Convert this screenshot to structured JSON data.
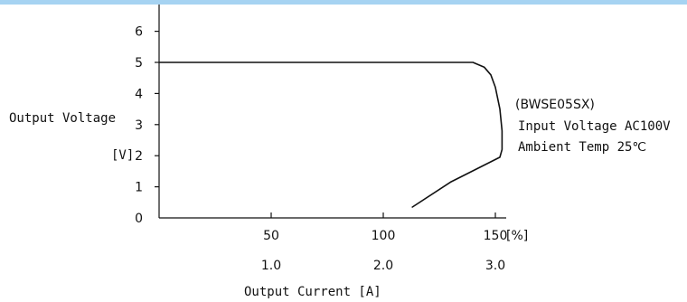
{
  "chart_data": {
    "type": "line",
    "title": "",
    "xlabel": "Output Current [A]",
    "ylabel_line1": "Output Voltage",
    "ylabel_line2": "[V]",
    "x_unit_label": "[%]",
    "xlim": [
      0,
      155
    ],
    "ylim": [
      0,
      6.5
    ],
    "x_ticks_percent": [
      "50",
      "100",
      "150"
    ],
    "x_ticks_amps": [
      "1.0",
      "2.0",
      "3.0"
    ],
    "y_ticks": [
      "0",
      "1",
      "2",
      "3",
      "4",
      "5",
      "6"
    ],
    "grid": false,
    "series": [
      {
        "name": "",
        "x": [
          0,
          140,
          145,
          148,
          150,
          152,
          153,
          153,
          152,
          130,
          113
        ],
        "y": [
          5,
          5,
          4.85,
          4.6,
          4.2,
          3.5,
          2.8,
          2.2,
          1.95,
          1.15,
          0.35
        ]
      }
    ],
    "annotations": [
      "(BWSE05SX)",
      "Input Voltage AC100V",
      "Ambient Temp  25℃"
    ],
    "colors": {
      "line": "#111111",
      "top_bar": "#a6d3f2"
    }
  }
}
